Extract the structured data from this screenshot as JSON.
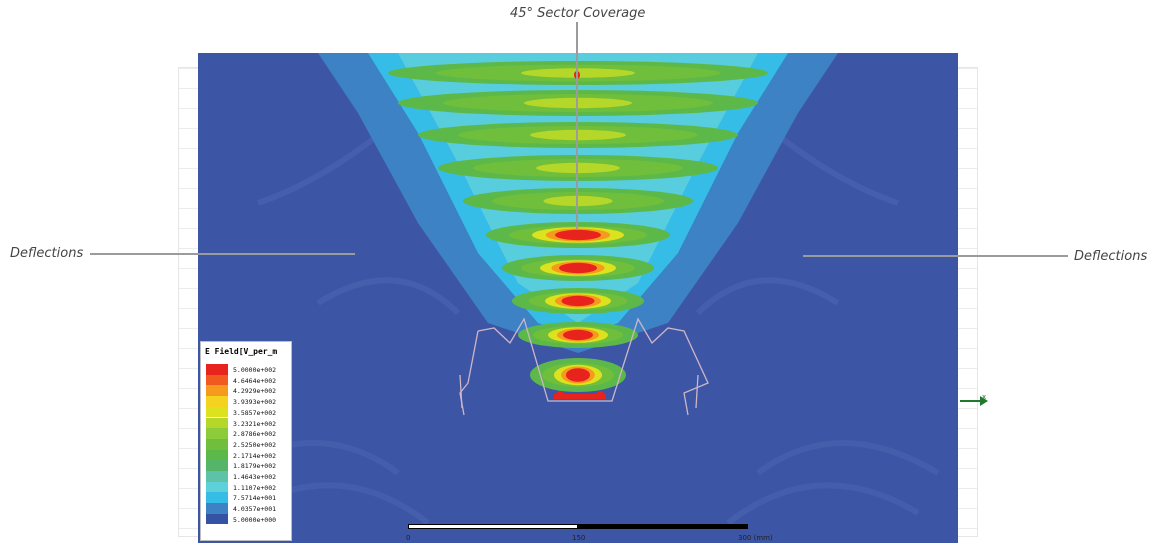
{
  "annotations": {
    "top": "45° Sector Coverage",
    "left": "Deflections",
    "right": "Deflections"
  },
  "legend": {
    "title": "E Field[V_per_m",
    "entries": [
      {
        "value": "5.0000e+002",
        "color": "#e8221c"
      },
      {
        "value": "4.6464e+002",
        "color": "#f05a1e"
      },
      {
        "value": "4.2929e+002",
        "color": "#f59a1c"
      },
      {
        "value": "3.9393e+002",
        "color": "#f5d21e"
      },
      {
        "value": "3.5857e+002",
        "color": "#dde21e"
      },
      {
        "value": "3.2321e+002",
        "color": "#b4d72a"
      },
      {
        "value": "2.8786e+002",
        "color": "#8ccb3a"
      },
      {
        "value": "2.5250e+002",
        "color": "#6fbe3c"
      },
      {
        "value": "2.1714e+002",
        "color": "#5cb848"
      },
      {
        "value": "1.8179e+002",
        "color": "#54b46a"
      },
      {
        "value": "1.4643e+002",
        "color": "#5ec2a8"
      },
      {
        "value": "1.1107e+002",
        "color": "#5ed0da"
      },
      {
        "value": "7.5714e+001",
        "color": "#35bde8"
      },
      {
        "value": "4.0357e+001",
        "color": "#3d82c4"
      },
      {
        "value": "5.0000e+000",
        "color": "#3553a4"
      }
    ]
  },
  "scale": {
    "labels": [
      "0",
      "150",
      "300 (mm)"
    ]
  },
  "axis": {
    "x_label": "x"
  },
  "colors": {
    "background_field": "#3c55a5",
    "fringe": "#3d82c4",
    "cyan": "#35bde8",
    "green": "#6fbe3c",
    "hot": "#e8221c"
  }
}
